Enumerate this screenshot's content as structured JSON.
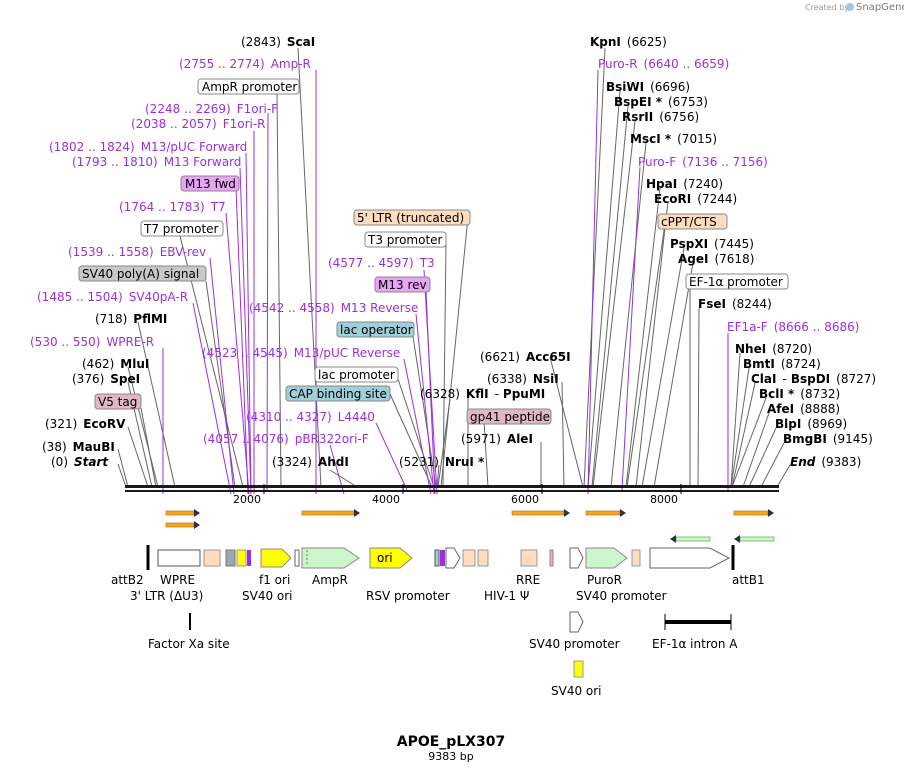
{
  "credit": {
    "created_by": "Created by",
    "brand": "SnapGene"
  },
  "title": "APOE_pLX307",
  "subtitle": "9383 bp",
  "axis": {
    "length": 9383,
    "ticks": [
      "2000",
      "4000",
      "6000",
      "8000"
    ]
  },
  "labels": {
    "l0": {
      "pos": "(2843)",
      "name": "ScaI"
    },
    "l1": {
      "pos": "(2755 .. 2774)",
      "name": "Amp-R"
    },
    "l2": {
      "name": "AmpR promoter"
    },
    "l3": {
      "pos": "(2248 .. 2269)",
      "name": "F1ori-F"
    },
    "l4": {
      "pos": "(2038 .. 2057)",
      "name": "F1ori-R"
    },
    "l5": {
      "pos": "(1802 .. 1824)",
      "name": "M13/pUC Forward"
    },
    "l6": {
      "pos": "(1793 .. 1810)",
      "name": "M13 Forward"
    },
    "l7": {
      "name": "M13 fwd"
    },
    "l8": {
      "pos": "(1764 .. 1783)",
      "name": "T7"
    },
    "l9": {
      "name": "T7 promoter"
    },
    "l10": {
      "pos": "(1539 .. 1558)",
      "name": "EBV-rev"
    },
    "l11": {
      "name": "SV40 poly(A) signal"
    },
    "l12": {
      "pos": "(1485 .. 1504)",
      "name": "SV40pA-R"
    },
    "l13": {
      "pos": "(718)",
      "name": "PflMI"
    },
    "l14": {
      "pos": "(530 .. 550)",
      "name": "WPRE-R"
    },
    "l15": {
      "pos": "(462)",
      "name": "MluI"
    },
    "l16": {
      "pos": "(376)",
      "name": "SpeI"
    },
    "l17": {
      "name": "V5 tag"
    },
    "l18": {
      "pos": "(321)",
      "name": "EcoRV"
    },
    "l19": {
      "pos": "(38)",
      "name": "MauBI"
    },
    "l20": {
      "pos": "(0)",
      "name": "Start"
    },
    "l21": {
      "name": "5' LTR (truncated)"
    },
    "l22": {
      "name": "T3 promoter"
    },
    "l23": {
      "pos": "(4577 .. 4597)",
      "name": "T3"
    },
    "l24": {
      "name": "M13 rev"
    },
    "l25": {
      "pos": "(4542 .. 4558)",
      "name": "M13 Reverse"
    },
    "l26": {
      "name": "lac operator"
    },
    "l27": {
      "pos": "(4523 .. 4545)",
      "name": "M13/pUC Reverse"
    },
    "l28": {
      "name": "lac promoter"
    },
    "l29": {
      "name": "CAP binding site"
    },
    "l30": {
      "pos": "(4310 .. 4327)",
      "name": "L4440"
    },
    "l31": {
      "pos": "(4057 .. 4076)",
      "name": "pBR322ori-F"
    },
    "l32": {
      "pos": "(3324)",
      "name": "AhdI"
    },
    "l33": {
      "pos": "(5231)",
      "name": "NruI *"
    },
    "l34": {
      "pos": "(6328)",
      "name": "KflI"
    },
    "l35": {
      "name": "gp41 peptide"
    },
    "l36": {
      "pos": "(6621)",
      "name": "Acc65I"
    },
    "l37": {
      "pos": "(6338)",
      "name": "NsiI"
    },
    "l38": {
      "name": "PpuMI"
    },
    "l39": {
      "pos": "(5971)",
      "name": "AleI"
    },
    "l40": {
      "name": "KpnI",
      "pos": "(6625)"
    },
    "l41": {
      "name": "Puro-R",
      "pos": "(6640 .. 6659)"
    },
    "l42": {
      "name": "BsiWI",
      "pos": "(6696)"
    },
    "l43": {
      "name": "BspEI *",
      "pos": "(6753)"
    },
    "l44": {
      "name": "RsrII",
      "pos": "(6756)"
    },
    "l45": {
      "name": "MscI *",
      "pos": "(7015)"
    },
    "l46": {
      "name": "Puro-F",
      "pos": "(7136 .. 7156)"
    },
    "l47": {
      "name": "HpaI",
      "pos": "(7240)"
    },
    "l48": {
      "name": "EcoRI",
      "pos": "(7244)"
    },
    "l49": {
      "name": "cPPT/CTS"
    },
    "l50": {
      "name": "PspXI",
      "pos": "(7445)"
    },
    "l51": {
      "name": "AgeI",
      "pos": "(7618)"
    },
    "l52": {
      "name": "EF-1α promoter"
    },
    "l53": {
      "name": "FseI",
      "pos": "(8244)"
    },
    "l54": {
      "name": "EF1a-F",
      "pos": "(8666 .. 8686)"
    },
    "l55": {
      "name": "NheI",
      "pos": "(8720)"
    },
    "l56": {
      "name": "BmtI",
      "pos": "(8724)"
    },
    "l57": {
      "name": "ClaI",
      "name2": "BspDI",
      "pos": "(8727)"
    },
    "l58": {
      "name": "BclI *",
      "pos": "(8732)"
    },
    "l59": {
      "name": "AfeI",
      "pos": "(8888)"
    },
    "l60": {
      "name": "BlpI",
      "pos": "(8969)"
    },
    "l61": {
      "name": "BmgBI",
      "pos": "(9145)"
    },
    "l62": {
      "name": "End",
      "pos": "(9383)"
    }
  },
  "features": {
    "attB2": "attB2",
    "wpre": "WPRE",
    "ltr3": "3' LTR (ΔU3)",
    "f1ori": "f1 ori",
    "sv40ori1": "SV40 ori",
    "ampr": "AmpR",
    "ori": "ori",
    "rsv": "RSV promoter",
    "rre": "RRE",
    "hiv": "HIV-1 Ψ",
    "puror": "PuroR",
    "sv40prom1": "SV40 promoter",
    "attB1": "attB1",
    "factorxa": "Factor Xa site",
    "sv40prom2": "SV40 promoter",
    "ef1intron": "EF-1α intron A",
    "sv40ori2": "SV40 ori"
  },
  "colors": {
    "primer": "#9b30d9",
    "fwd_arrow": "#f5a623",
    "puro_arrow": "#ccf5cc",
    "ori_yellow": "#ffff00",
    "ltr_peach": "#fddcbf",
    "gray_tag": "#c8c8c8",
    "v5": "#e0b7c2",
    "lac": "#9fcfd9",
    "m13": "#e9a5f5"
  }
}
